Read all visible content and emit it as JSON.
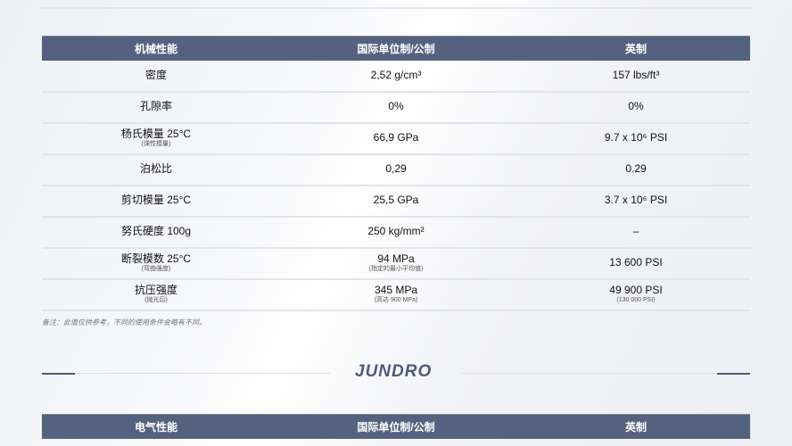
{
  "mechanical": {
    "headers": [
      "机械性能",
      "国际单位制/公制",
      "英制"
    ],
    "rows": [
      {
        "name": "密度",
        "sub": "",
        "si": "2,52 g/cm³",
        "si_sub": "",
        "imp": "157 lbs/ft³",
        "imp_sub": ""
      },
      {
        "name": "孔隙率",
        "sub": "",
        "si": "0%",
        "si_sub": "",
        "imp": "0%",
        "imp_sub": ""
      },
      {
        "name": "杨氏模量 25°C",
        "sub": "(弹性模量)",
        "si": "66,9 GPa",
        "si_sub": "",
        "imp": "9.7 x 10⁶ PSI",
        "imp_sub": ""
      },
      {
        "name": "泊松比",
        "sub": "",
        "si": "0,29",
        "si_sub": "",
        "imp": "0.29",
        "imp_sub": ""
      },
      {
        "name": "剪切模量 25°C",
        "sub": "",
        "si": "25,5 GPa",
        "si_sub": "",
        "imp": "3.7 x 10⁶ PSI",
        "imp_sub": ""
      },
      {
        "name": "努氏硬度 100g",
        "sub": "",
        "si": "250 kg/mm²",
        "si_sub": "",
        "imp": "–",
        "imp_sub": ""
      },
      {
        "name": "断裂模数 25°C",
        "sub": "(弯曲强度)",
        "si": "94 MPa",
        "si_sub": "(指定的最小平均值)",
        "imp": "13 600 PSI",
        "imp_sub": ""
      },
      {
        "name": "抗压强度",
        "sub": "(抛光后)",
        "si": "345 MPa",
        "si_sub": "(高达 900 MPa)",
        "imp": "49 900 PSI",
        "imp_sub": "(130 000 PSI)"
      }
    ]
  },
  "note": "备注：此值仅供参考，不同的使用条件会略有不同。",
  "logo": "JUNDRO",
  "electrical": {
    "headers": [
      "电气性能",
      "国际单位制/公制",
      "英制"
    ]
  },
  "colors": {
    "header_bg": "#55627f",
    "accent": "#4d5a78"
  }
}
